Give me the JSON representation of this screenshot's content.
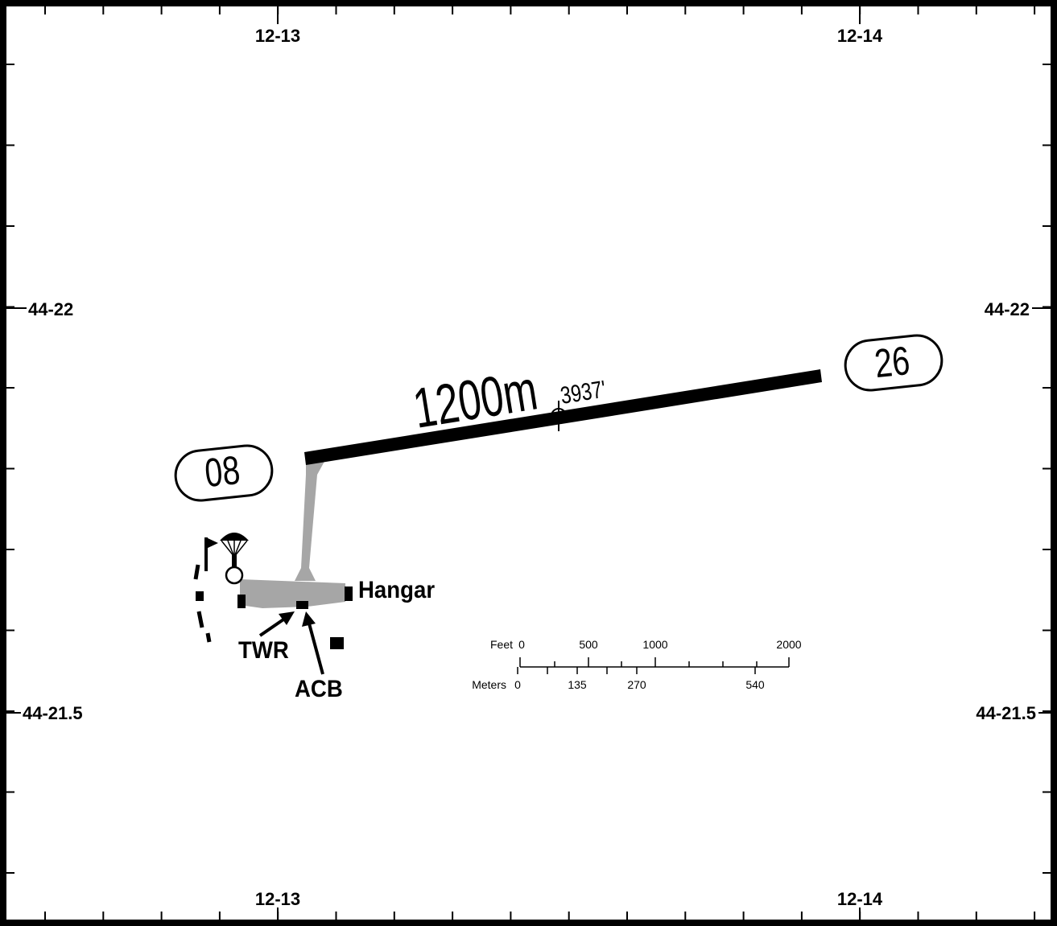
{
  "coordinates": {
    "lon_left": "12-13",
    "lon_right": "12-14",
    "lat_upper": "44-22",
    "lat_lower": "44-21.5"
  },
  "runway": {
    "length_m": "1200m",
    "length_ft": "3937'",
    "end_west": "08",
    "end_east": "26"
  },
  "labels": {
    "hangar": "Hangar",
    "tower": "TWR",
    "acb": "ACB"
  },
  "scale": {
    "feet_label": "Feet",
    "feet_ticks": [
      "0",
      "500",
      "1000",
      "2000"
    ],
    "meters_label": "Meters",
    "meters_ticks": [
      "0",
      "135",
      "270",
      "540"
    ]
  },
  "colors": {
    "runway": "#000000",
    "taxiway_apron": "#a6a6a6"
  },
  "icons": [
    "parachute-icon",
    "windsock-icon",
    "airport-reference-point-icon"
  ]
}
